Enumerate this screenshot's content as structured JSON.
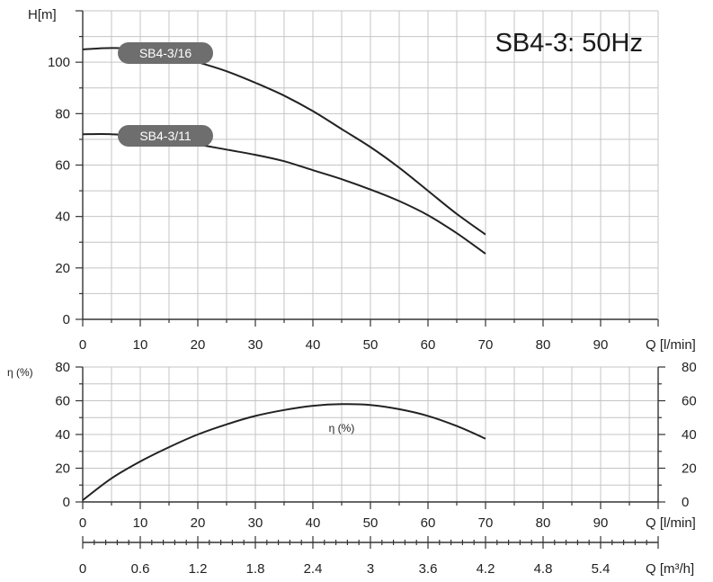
{
  "chart_data": [
    {
      "type": "line",
      "title": "SB4-3: 50Hz",
      "xlabel": "Q [l/min]",
      "ylabel": "H[m]",
      "xlim": [
        0,
        100
      ],
      "ylim": [
        0,
        120
      ],
      "grid": true,
      "x_ticks": [
        "0",
        "10",
        "20",
        "30",
        "40",
        "50",
        "60",
        "70",
        "80",
        "90"
      ],
      "y_ticks": [
        "0",
        "20",
        "40",
        "60",
        "80",
        "100"
      ],
      "series": [
        {
          "name": "SB4-3/16",
          "x": [
            0,
            5,
            10,
            15,
            20,
            25,
            30,
            35,
            40,
            45,
            50,
            55,
            60,
            65,
            70
          ],
          "y": [
            105,
            105.5,
            105,
            103,
            100,
            96.5,
            92,
            87,
            81,
            74,
            67,
            59,
            50,
            41,
            33
          ]
        },
        {
          "name": "SB4-3/11",
          "x": [
            0,
            5,
            10,
            15,
            20,
            25,
            30,
            35,
            40,
            45,
            50,
            55,
            60,
            65,
            70
          ],
          "y": [
            72,
            72,
            71,
            69.5,
            68,
            66,
            64,
            61.5,
            58,
            54.5,
            50.5,
            46,
            40.5,
            33.5,
            25.5
          ]
        }
      ]
    },
    {
      "type": "line",
      "xlabel": "Q [l/min]",
      "ylabel": "η (%)",
      "xlim": [
        0,
        100
      ],
      "ylim": [
        0,
        80
      ],
      "grid": true,
      "x_ticks": [
        "0",
        "10",
        "20",
        "30",
        "40",
        "50",
        "60",
        "70",
        "80",
        "90"
      ],
      "y_ticks": [
        "0",
        "20",
        "40",
        "60",
        "80"
      ],
      "y_ticks_right": [
        "0",
        "20",
        "40",
        "60",
        "80"
      ],
      "secondary_x_label": "Q [m³/h]",
      "secondary_x_ticks": [
        "0",
        "0.6",
        "1.2",
        "1.8",
        "2.4",
        "3",
        "3.6",
        "4.2",
        "4.8",
        "5.4"
      ],
      "series": [
        {
          "name": "η (%)",
          "x": [
            0,
            5,
            10,
            15,
            20,
            25,
            30,
            35,
            40,
            45,
            50,
            55,
            60,
            65,
            70
          ],
          "y": [
            1,
            14,
            24,
            32.5,
            40,
            46,
            51,
            54.5,
            57,
            58,
            57.5,
            55,
            51,
            45,
            37.5
          ]
        }
      ]
    }
  ]
}
